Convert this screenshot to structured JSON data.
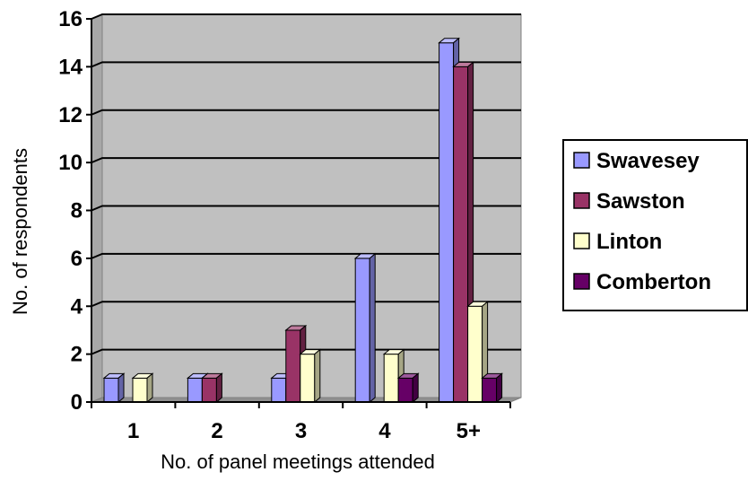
{
  "chart_data": {
    "type": "bar",
    "categories": [
      "1",
      "2",
      "3",
      "4",
      "5+"
    ],
    "series": [
      {
        "name": "Swavesey",
        "values": [
          1,
          1,
          1,
          6,
          15
        ]
      },
      {
        "name": "Sawston",
        "values": [
          0,
          1,
          3,
          0,
          14
        ]
      },
      {
        "name": "Linton",
        "values": [
          1,
          0,
          2,
          2,
          4
        ]
      },
      {
        "name": "Comberton",
        "values": [
          0,
          0,
          0,
          1,
          1
        ]
      }
    ],
    "xlabel": "No. of panel meetings attended",
    "ylabel": "No. of respondents",
    "ylim": [
      0,
      16
    ],
    "y_ticks": [
      0,
      2,
      4,
      6,
      8,
      10,
      12,
      14,
      16
    ],
    "grid": true,
    "legend_position": "right",
    "chart_style": "3d-clustered-column",
    "colors": {
      "plot_background": "#C0C0C0",
      "gridline": "#000000",
      "series": [
        "#9999FF",
        "#993366",
        "#FFFFCC",
        "#660066"
      ]
    }
  }
}
